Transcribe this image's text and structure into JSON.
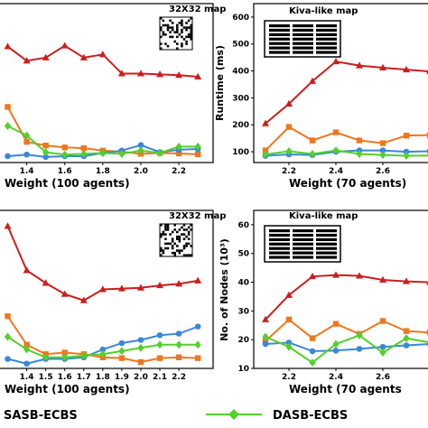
{
  "colors": {
    "red": "#cc1e1e",
    "orange": "#f0761e",
    "blue": "#3a87d8",
    "green": "#52d02c"
  },
  "legend": {
    "items": [
      {
        "label": "SASB-ECBS",
        "color": "red"
      },
      {
        "label": "DASB-ECBS",
        "color": "green"
      }
    ]
  },
  "chart_data": [
    {
      "id": "p1",
      "type": "line",
      "map_title": "32X32 map",
      "map_icon": "random-grid-map-icon",
      "xlabel": "Weight  (100 agents)",
      "ylabel": "",
      "xlim": [
        1.25,
        2.38
      ],
      "ylim": [
        0,
        1
      ],
      "xticks": [
        1.4,
        1.6,
        1.8,
        2.0,
        2.2
      ],
      "xtick_labels": [
        "1.4",
        "1.6",
        "1.8",
        "2.0",
        "2.2"
      ],
      "yticks": [],
      "ytick_labels": [],
      "x": [
        1.3,
        1.4,
        1.5,
        1.6,
        1.7,
        1.8,
        1.9,
        2.0,
        2.1,
        2.2,
        2.3
      ],
      "series": [
        {
          "color": "red",
          "marker": "triangle",
          "values": [
            0.73,
            0.64,
            0.66,
            0.735,
            0.66,
            0.68,
            0.56,
            0.56,
            0.555,
            0.55,
            0.54
          ]
        },
        {
          "color": "orange",
          "marker": "square",
          "values": [
            0.35,
            0.13,
            0.107,
            0.095,
            0.09,
            0.075,
            0.068,
            0.055,
            0.06,
            0.057,
            0.052
          ]
        },
        {
          "color": "blue",
          "marker": "circle",
          "values": [
            0.04,
            0.05,
            0.035,
            0.04,
            0.04,
            0.06,
            0.075,
            0.11,
            0.065,
            0.08,
            0.085
          ]
        },
        {
          "color": "green",
          "marker": "diamond",
          "values": [
            0.23,
            0.17,
            0.065,
            0.05,
            0.055,
            0.06,
            0.055,
            0.075,
            0.06,
            0.1,
            0.1
          ]
        }
      ]
    },
    {
      "id": "p2",
      "type": "line",
      "map_title": "Kiva-like map",
      "map_icon": "warehouse-shelves-map-icon",
      "xlabel": "Weight (70 agents)",
      "ylabel": "Runtime (ms)",
      "xlim": [
        2.05,
        2.8
      ],
      "ylim": [
        60,
        650
      ],
      "xticks": [
        2.2,
        2.4,
        2.6
      ],
      "xtick_labels": [
        "2.2",
        "2.4",
        "2.6"
      ],
      "yticks": [
        100,
        200,
        300,
        400,
        500,
        600
      ],
      "ytick_labels": [
        "100",
        "200",
        "300",
        "400",
        "500",
        "600"
      ],
      "x": [
        2.1,
        2.2,
        2.3,
        2.4,
        2.5,
        2.6,
        2.7,
        2.8
      ],
      "series": [
        {
          "color": "red",
          "marker": "triangle",
          "values": [
            205,
            278,
            362,
            435,
            420,
            412,
            405,
            398
          ]
        },
        {
          "color": "orange",
          "marker": "square",
          "values": [
            105,
            192,
            142,
            172,
            142,
            132,
            160,
            162
          ]
        },
        {
          "color": "blue",
          "marker": "circle",
          "values": [
            85,
            90,
            88,
            100,
            105,
            105,
            100,
            102
          ]
        },
        {
          "color": "green",
          "marker": "diamond",
          "values": [
            90,
            102,
            92,
            105,
            92,
            88,
            85,
            86
          ]
        }
      ]
    },
    {
      "id": "p3",
      "type": "line",
      "map_title": "32X32 map",
      "map_icon": "random-grid-map-icon",
      "xlabel": "Weight (100 agents)",
      "ylabel": "",
      "xlim": [
        1.25,
        2.38
      ],
      "ylim": [
        0,
        1
      ],
      "xticks": [
        1.4,
        1.5,
        1.6,
        1.7,
        1.8,
        1.9,
        2.0,
        2.1,
        2.2
      ],
      "xtick_labels": [
        "1.4",
        "1.5",
        "1.6",
        "1.7",
        "1.8",
        "1.9",
        "2.0",
        "2.1",
        "2.2"
      ],
      "yticks": [],
      "ytick_labels": [],
      "x": [
        1.3,
        1.4,
        1.5,
        1.6,
        1.7,
        1.8,
        1.9,
        2.0,
        2.1,
        2.2,
        2.3
      ],
      "series": [
        {
          "color": "red",
          "marker": "triangle",
          "values": [
            0.9,
            0.62,
            0.54,
            0.47,
            0.43,
            0.5,
            0.505,
            0.51,
            0.525,
            0.535,
            0.555
          ]
        },
        {
          "color": "orange",
          "marker": "square",
          "values": [
            0.33,
            0.15,
            0.09,
            0.1,
            0.09,
            0.07,
            0.065,
            0.04,
            0.065,
            0.07,
            0.065
          ]
        },
        {
          "color": "blue",
          "marker": "circle",
          "values": [
            0.06,
            0.03,
            0.06,
            0.06,
            0.07,
            0.12,
            0.16,
            0.18,
            0.21,
            0.22,
            0.265
          ]
        },
        {
          "color": "green",
          "marker": "diamond",
          "values": [
            0.2,
            0.12,
            0.07,
            0.07,
            0.08,
            0.09,
            0.11,
            0.13,
            0.15,
            0.15,
            0.15
          ]
        }
      ]
    },
    {
      "id": "p4",
      "type": "line",
      "map_title": "Kiva-like map",
      "map_icon": "warehouse-shelves-map-icon",
      "xlabel": "Weight (70 agents",
      "ylabel": "No. of Nodes (10³)",
      "xlim": [
        2.05,
        2.8
      ],
      "ylim": [
        10,
        65
      ],
      "xticks": [
        2.2,
        2.4,
        2.6
      ],
      "xtick_labels": [
        "2.2",
        "2.4",
        "2.6"
      ],
      "yticks": [
        10,
        20,
        30,
        40,
        50,
        60
      ],
      "ytick_labels": [
        "10",
        "20",
        "30",
        "40",
        "50",
        "60"
      ],
      "x": [
        2.1,
        2.2,
        2.3,
        2.4,
        2.5,
        2.6,
        2.7,
        2.8
      ],
      "series": [
        {
          "color": "red",
          "marker": "triangle",
          "values": [
            27,
            35.5,
            42,
            42.5,
            42.2,
            40.8,
            40.3,
            40
          ]
        },
        {
          "color": "orange",
          "marker": "square",
          "values": [
            19.5,
            27,
            20.5,
            25.5,
            22,
            26.5,
            23,
            22.5
          ]
        },
        {
          "color": "blue",
          "marker": "circle",
          "values": [
            18.5,
            19,
            16,
            16.2,
            16.8,
            17.5,
            18,
            18.5
          ]
        },
        {
          "color": "green",
          "marker": "diamond",
          "values": [
            21,
            17.5,
            12,
            18.5,
            21.5,
            15.5,
            20.5,
            19
          ]
        }
      ]
    }
  ]
}
